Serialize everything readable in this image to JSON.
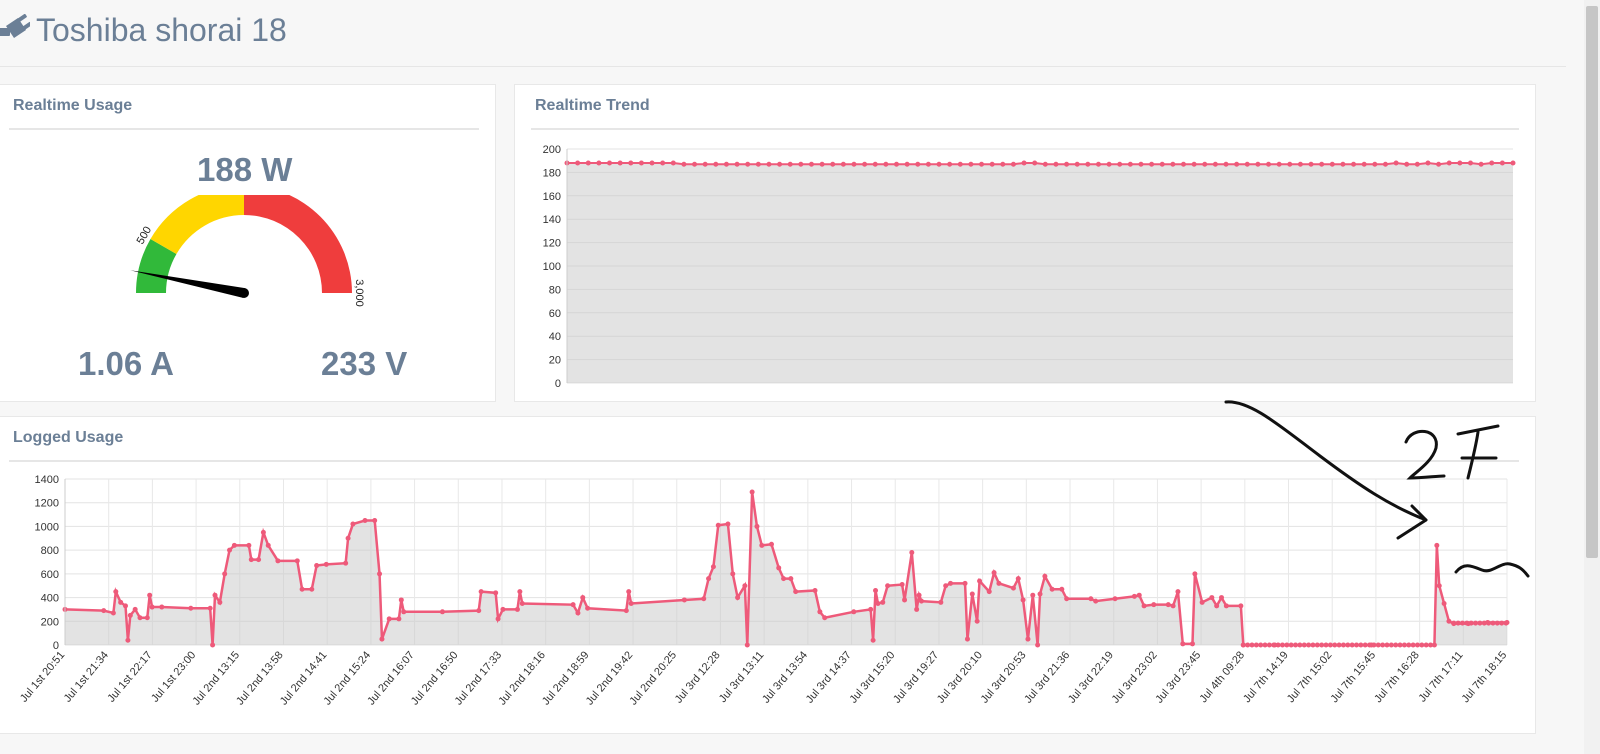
{
  "page": {
    "title": "Toshiba shorai 18",
    "icon": "plug-icon"
  },
  "realtime_usage": {
    "title": "Realtime Usage",
    "power_label": "188 W",
    "current_label": "1.06 A",
    "voltage_label": "233 V",
    "gauge": {
      "value": 188,
      "min": 0,
      "max": 3000,
      "ticks": [
        "500",
        "1,500",
        "3,000"
      ],
      "bands": [
        {
          "from": 0,
          "to": 500,
          "color": "#31b93a"
        },
        {
          "from": 500,
          "to": 1500,
          "color": "#ffd600"
        },
        {
          "from": 1500,
          "to": 3000,
          "color": "#ef3d3d"
        }
      ]
    }
  },
  "realtime_trend": {
    "title": "Realtime Trend",
    "chart_data": {
      "type": "area",
      "ylim": [
        0,
        200
      ],
      "yticks": [
        "0",
        "20",
        "40",
        "60",
        "80",
        "100",
        "120",
        "140",
        "160",
        "180",
        "200"
      ],
      "values": [
        188,
        188,
        188,
        188,
        188,
        188,
        188,
        188,
        188,
        188,
        188,
        187,
        187,
        187,
        187,
        187,
        187,
        187,
        187,
        187,
        187,
        187,
        187,
        187,
        187,
        187,
        187,
        187,
        187,
        187,
        187,
        187,
        187,
        187,
        187,
        187,
        187,
        187,
        187,
        187,
        187,
        187,
        187,
        188,
        188,
        187,
        187,
        187,
        187,
        187,
        187,
        187,
        187,
        187,
        187,
        187,
        187,
        187,
        187,
        187,
        187,
        187,
        187,
        187,
        187,
        187,
        187,
        187,
        187,
        187,
        187,
        187,
        187,
        187,
        187,
        187,
        187,
        187,
        188,
        187,
        187,
        188,
        187,
        188,
        188,
        188,
        187,
        188,
        188,
        188
      ],
      "line_color": "#ee5a7a"
    }
  },
  "logged_usage": {
    "title": "Logged Usage",
    "chart_data": {
      "type": "area",
      "ylim": [
        0,
        1400
      ],
      "yticks": [
        "0",
        "200",
        "400",
        "600",
        "800",
        "1000",
        "1200",
        "1400"
      ],
      "xticks": [
        "Jul 1st 20:51",
        "Jul 1st 21:34",
        "Jul 1st 22:17",
        "Jul 1st 23:00",
        "Jul 2nd 13:15",
        "Jul 2nd 13:58",
        "Jul 2nd 14:41",
        "Jul 2nd 15:24",
        "Jul 2nd 16:07",
        "Jul 2nd 16:50",
        "Jul 2nd 17:33",
        "Jul 2nd 18:16",
        "Jul 2nd 18:59",
        "Jul 2nd 19:42",
        "Jul 2nd 20:25",
        "Jul 3rd 12:28",
        "Jul 3rd 13:11",
        "Jul 3rd 13:54",
        "Jul 3rd 14:37",
        "Jul 3rd 15:20",
        "Jul 3rd 19:27",
        "Jul 3rd 20:10",
        "Jul 3rd 20:53",
        "Jul 3rd 21:36",
        "Jul 3rd 22:19",
        "Jul 3rd 23:02",
        "Jul 3rd 23:45",
        "Jul 4th 09:28",
        "Jul 7th 14:19",
        "Jul 7th 15:02",
        "Jul 7th 15:45",
        "Jul 7th 16:28",
        "Jul 7th 17:11",
        "Jul 7th 18:15"
      ],
      "points": [
        [
          0,
          300
        ],
        [
          0.8,
          290
        ],
        [
          1.0,
          270
        ],
        [
          1.05,
          450
        ],
        [
          1.15,
          360
        ],
        [
          1.25,
          330
        ],
        [
          1.3,
          40
        ],
        [
          1.35,
          250
        ],
        [
          1.45,
          300
        ],
        [
          1.55,
          230
        ],
        [
          1.7,
          230
        ],
        [
          1.75,
          420
        ],
        [
          1.8,
          320
        ],
        [
          2.0,
          320
        ],
        [
          2.6,
          310
        ],
        [
          3.0,
          310
        ],
        [
          3.05,
          0
        ],
        [
          3.1,
          420
        ],
        [
          3.2,
          360
        ],
        [
          3.3,
          600
        ],
        [
          3.4,
          800
        ],
        [
          3.5,
          840
        ],
        [
          3.8,
          840
        ],
        [
          3.85,
          720
        ],
        [
          4.0,
          720
        ],
        [
          4.1,
          950
        ],
        [
          4.2,
          840
        ],
        [
          4.4,
          710
        ],
        [
          4.8,
          710
        ],
        [
          4.9,
          470
        ],
        [
          5.1,
          470
        ],
        [
          5.2,
          670
        ],
        [
          5.4,
          680
        ],
        [
          5.8,
          690
        ],
        [
          5.85,
          900
        ],
        [
          5.95,
          1020
        ],
        [
          6.2,
          1050
        ],
        [
          6.4,
          1050
        ],
        [
          6.5,
          600
        ],
        [
          6.55,
          50
        ],
        [
          6.7,
          220
        ],
        [
          6.9,
          220
        ],
        [
          6.95,
          380
        ],
        [
          7.0,
          280
        ],
        [
          7.8,
          280
        ],
        [
          8.55,
          290
        ],
        [
          8.6,
          450
        ],
        [
          8.9,
          440
        ],
        [
          8.95,
          220
        ],
        [
          9.05,
          300
        ],
        [
          9.35,
          300
        ],
        [
          9.4,
          450
        ],
        [
          9.45,
          350
        ],
        [
          10.5,
          340
        ],
        [
          10.6,
          270
        ],
        [
          10.7,
          400
        ],
        [
          10.8,
          310
        ],
        [
          11.6,
          290
        ],
        [
          11.65,
          450
        ],
        [
          11.7,
          350
        ],
        [
          12.8,
          380
        ],
        [
          13.2,
          390
        ],
        [
          13.3,
          560
        ],
        [
          13.4,
          660
        ],
        [
          13.5,
          1010
        ],
        [
          13.7,
          1020
        ],
        [
          13.8,
          600
        ],
        [
          13.9,
          400
        ],
        [
          14.05,
          500
        ],
        [
          14.1,
          0
        ],
        [
          14.2,
          1290
        ],
        [
          14.3,
          1000
        ],
        [
          14.4,
          840
        ],
        [
          14.6,
          850
        ],
        [
          14.75,
          650
        ],
        [
          14.85,
          560
        ],
        [
          15.0,
          560
        ],
        [
          15.1,
          450
        ],
        [
          15.5,
          460
        ],
        [
          15.6,
          280
        ],
        [
          15.7,
          230
        ],
        [
          16.3,
          280
        ],
        [
          16.65,
          300
        ],
        [
          16.7,
          40
        ],
        [
          16.75,
          460
        ],
        [
          16.8,
          350
        ],
        [
          16.9,
          360
        ],
        [
          17.0,
          500
        ],
        [
          17.3,
          510
        ],
        [
          17.35,
          380
        ],
        [
          17.5,
          780
        ],
        [
          17.6,
          300
        ],
        [
          17.65,
          420
        ],
        [
          17.7,
          370
        ],
        [
          18.1,
          360
        ],
        [
          18.2,
          500
        ],
        [
          18.3,
          520
        ],
        [
          18.6,
          520
        ],
        [
          18.65,
          50
        ],
        [
          18.75,
          430
        ],
        [
          18.85,
          200
        ],
        [
          18.9,
          540
        ],
        [
          19.1,
          450
        ],
        [
          19.2,
          610
        ],
        [
          19.3,
          520
        ],
        [
          19.6,
          480
        ],
        [
          19.7,
          560
        ],
        [
          19.8,
          380
        ],
        [
          19.9,
          50
        ],
        [
          20.0,
          420
        ],
        [
          20.1,
          0
        ],
        [
          20.15,
          430
        ],
        [
          20.25,
          580
        ],
        [
          20.4,
          470
        ],
        [
          20.6,
          470
        ],
        [
          20.7,
          390
        ],
        [
          21.2,
          390
        ],
        [
          21.3,
          370
        ],
        [
          21.7,
          390
        ],
        [
          22.1,
          410
        ],
        [
          22.2,
          420
        ],
        [
          22.3,
          330
        ],
        [
          22.5,
          340
        ],
        [
          22.8,
          340
        ],
        [
          22.9,
          330
        ],
        [
          23.0,
          450
        ],
        [
          23.1,
          10
        ],
        [
          23.3,
          10
        ],
        [
          23.35,
          600
        ],
        [
          23.5,
          360
        ],
        [
          23.7,
          400
        ],
        [
          23.8,
          330
        ],
        [
          23.9,
          400
        ],
        [
          24.0,
          330
        ],
        [
          24.3,
          330
        ],
        [
          24.35,
          0
        ],
        [
          25.0,
          0
        ],
        [
          27.0,
          0
        ],
        [
          28.3,
          0
        ],
        [
          28.35,
          840
        ],
        [
          28.4,
          500
        ],
        [
          28.5,
          350
        ],
        [
          28.6,
          200
        ],
        [
          28.7,
          180
        ],
        [
          29.0,
          180
        ],
        [
          29.4,
          190
        ],
        [
          29.8,
          190
        ]
      ],
      "line_color": "#ee5a7a"
    }
  }
}
